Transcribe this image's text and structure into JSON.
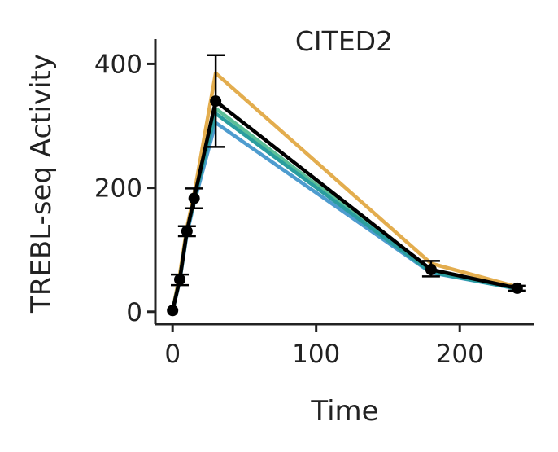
{
  "chart_data": {
    "type": "line",
    "title": "CITED2",
    "xlabel": "Time",
    "ylabel": "TREBL-seq Activity",
    "xlim": [
      -12,
      252
    ],
    "ylim": [
      -20,
      440
    ],
    "xticks": [
      0,
      100,
      200
    ],
    "yticks": [
      0,
      200,
      400
    ],
    "xtick_labels": [
      "0",
      "100",
      "200"
    ],
    "ytick_labels": [
      "0",
      "200",
      "400"
    ],
    "grid": false,
    "x": [
      0,
      5,
      10,
      15,
      30,
      180,
      240
    ],
    "series": [
      {
        "color": "#e3ad4e",
        "values": [
          2,
          60,
          136,
          190,
          385,
          78,
          40
        ]
      },
      {
        "color": "#4e9ccf",
        "values": [
          2,
          50,
          126,
          176,
          305,
          63,
          37
        ]
      },
      {
        "color": "#5bbf98",
        "values": [
          2,
          52,
          130,
          180,
          328,
          65,
          38
        ]
      },
      {
        "color": "#2a9d9f",
        "values": [
          2,
          53,
          129,
          182,
          320,
          64,
          37
        ]
      },
      {
        "color": "#000000",
        "values": [
          2,
          52,
          130,
          183,
          340,
          68,
          38
        ],
        "markers": true,
        "err_low": [
          0,
          43,
          122,
          167,
          266,
          57,
          34
        ],
        "err_high": [
          0,
          60,
          138,
          199,
          414,
          82,
          42
        ]
      }
    ]
  }
}
